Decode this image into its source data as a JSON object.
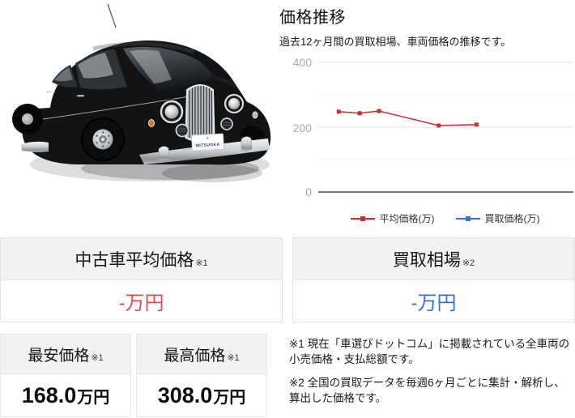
{
  "chart_data": {
    "type": "line",
    "title": "価格推移",
    "subtitle": "過去12ヶ月間の買取相場、車両価格の推移です。",
    "ylim": [
      0,
      400
    ],
    "y_ticks": [
      0,
      200,
      400
    ],
    "y_gridlines_major": [
      0,
      200,
      400
    ],
    "y_gridlines_minor": [
      100,
      300
    ],
    "legend_position": "bottom",
    "series": [
      {
        "name": "平均価格(万)",
        "color": "#c62f2f",
        "x_frac": [
          0.08,
          0.162,
          0.238,
          0.472,
          0.62
        ],
        "values": [
          248,
          243,
          250,
          205,
          208
        ]
      },
      {
        "name": "買取価格(万)",
        "color": "#3f72d8",
        "x_frac": [],
        "values": []
      }
    ]
  },
  "car": {
    "plate_text": "MITSUOKA"
  },
  "cards": {
    "used_avg": {
      "title": "中古車平均価格",
      "note": "※1",
      "value": "-万円",
      "color": "#dd4b4b"
    },
    "kaitori": {
      "title": "買取相場",
      "note": "※2",
      "value": "-万円",
      "color": "#3b6ed6"
    }
  },
  "price_table": {
    "min": {
      "label": "最安価格",
      "note": "※1",
      "value": "168.0",
      "unit": "万円"
    },
    "max": {
      "label": "最高価格",
      "note": "※1",
      "value": "308.0",
      "unit": "万円"
    }
  },
  "footnotes": [
    "※1 現在「車選びドットコム」に掲載されている全車両の小売価格・支払総額です。",
    "※2 全国の買取データを毎週6ヶ月ごとに集計・解析し、算出した価格です。"
  ]
}
